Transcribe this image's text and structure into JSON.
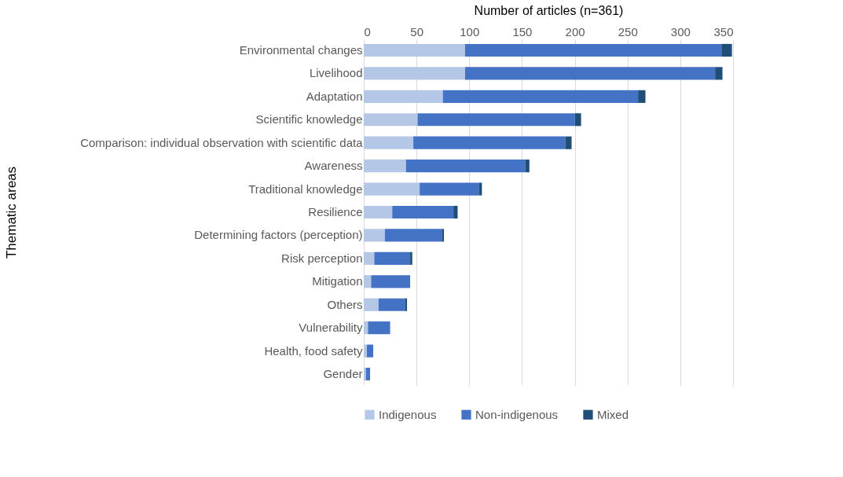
{
  "chart_data": {
    "type": "bar",
    "orientation": "horizontal",
    "stacked": true,
    "xlabel": "Number of articles (n=361)",
    "ylabel": "Thematic areas",
    "categories": [
      "Environmental changes",
      "Livelihood",
      "Adaptation",
      "Scientific knowledge",
      "Comparison: individual observation with scientific data",
      "Awareness",
      "Traditional knowledge",
      "Resilience",
      "Determining factors (perception)",
      "Risk perception",
      "Mitigation",
      "Others",
      "Vulnerability",
      "Health, food safety",
      "Gender"
    ],
    "series": [
      {
        "name": "Indigenous",
        "color": "#b4c7e7",
        "values": [
          96,
          96,
          75,
          51,
          47,
          40,
          53,
          27,
          20,
          10,
          7,
          14,
          4,
          3,
          2
        ]
      },
      {
        "name": "Non-indigenous",
        "color": "#4472c4",
        "values": [
          243,
          237,
          185,
          149,
          144,
          113,
          56,
          58,
          54,
          34,
          37,
          25,
          21,
          6,
          4
        ]
      },
      {
        "name": "Mixed",
        "color": "#1f4e79",
        "values": [
          10,
          7,
          7,
          6,
          6,
          4,
          3,
          4,
          2,
          2,
          0,
          2,
          0,
          0,
          0
        ]
      }
    ],
    "xlim": [
      0,
      350
    ],
    "xticks": [
      0,
      50,
      100,
      150,
      200,
      250,
      300,
      350
    ],
    "grid": "x",
    "legend": "bottom"
  }
}
